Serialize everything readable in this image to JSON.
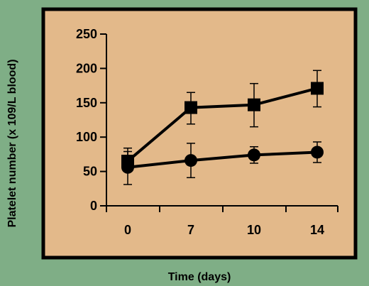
{
  "colors": {
    "background": "#7fae86",
    "plot_background": "#e3b98a",
    "frame": "#000000",
    "series": "#000000"
  },
  "chart_data": {
    "type": "line",
    "title": "",
    "xlabel": "Time (days)",
    "ylabel": "Platelet number (x 109/L blood)",
    "x_tick_labels": [
      "0",
      "7",
      "10",
      "14"
    ],
    "x": [
      0,
      7,
      10,
      14
    ],
    "y_ticks": [
      0,
      50,
      100,
      150,
      200,
      250
    ],
    "ylim": [
      0,
      250
    ],
    "grid": false,
    "legend": "none",
    "series": [
      {
        "marker": "square",
        "values": [
          65,
          143,
          147,
          171
        ],
        "error_low": [
          55,
          119,
          115,
          144
        ],
        "error_high": [
          84,
          165,
          178,
          197
        ]
      },
      {
        "marker": "circle",
        "values": [
          56,
          66,
          74,
          78
        ],
        "error_low": [
          31,
          41,
          62,
          63
        ],
        "error_high": [
          79,
          91,
          86,
          93
        ]
      }
    ]
  }
}
